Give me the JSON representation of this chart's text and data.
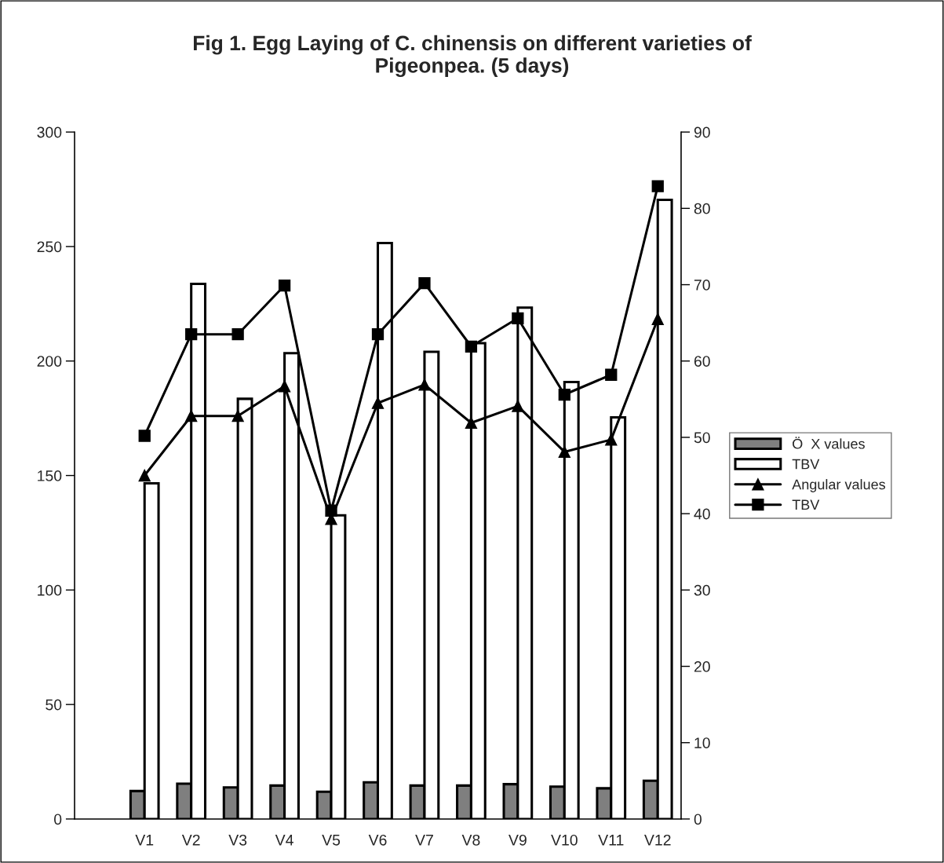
{
  "chart_data": {
    "type": "bar",
    "title": "Fig 1. Egg Laying of C. chinensis on different varieties of Pigeonpea. (5 days)",
    "categories": [
      null,
      "V1",
      "V2",
      "V3",
      "V4",
      "V5",
      "V6",
      "V7",
      "V8",
      "V9",
      "V10",
      "V11",
      "V12"
    ],
    "series": [
      {
        "name": "Ö  X values",
        "color": "#7f7f7f",
        "values": [
          null,
          12.2,
          15.4,
          13.8,
          14.6,
          11.9,
          16.0,
          14.6,
          14.6,
          15.2,
          14.1,
          13.4,
          16.7
        ]
      },
      {
        "name": "TBV",
        "color": "#ffffff",
        "values": [
          null,
          146.6,
          233.7,
          183.5,
          203.4,
          132.6,
          251.5,
          204,
          207.8,
          223.3,
          190.8,
          175.4,
          270.4
        ]
      },
      {
        "name": "Angular values",
        "type": "line",
        "axis": "y2",
        "marker": "triangle",
        "color": "#000000",
        "values": [
          null,
          45.0,
          52.8,
          52.8,
          56.7,
          39.3,
          54.5,
          56.9,
          51.9,
          54.1,
          48.1,
          49.7,
          65.5
        ]
      },
      {
        "name": "TBV",
        "type": "line",
        "axis": "y2",
        "marker": "square",
        "color": "#000000",
        "values": [
          null,
          50.2,
          63.5,
          63.5,
          69.9,
          40.4,
          63.5,
          70.2,
          61.9,
          65.6,
          55.6,
          58.2,
          82.9
        ]
      }
    ],
    "ylim": [
      0,
      300
    ],
    "yticks": [
      0,
      50,
      100,
      150,
      200,
      250,
      300
    ],
    "y2lim": [
      0,
      90
    ],
    "y2ticks": [
      0,
      10,
      20,
      30,
      40,
      50,
      60,
      70,
      80,
      90
    ],
    "grid": false,
    "legend": "right"
  }
}
